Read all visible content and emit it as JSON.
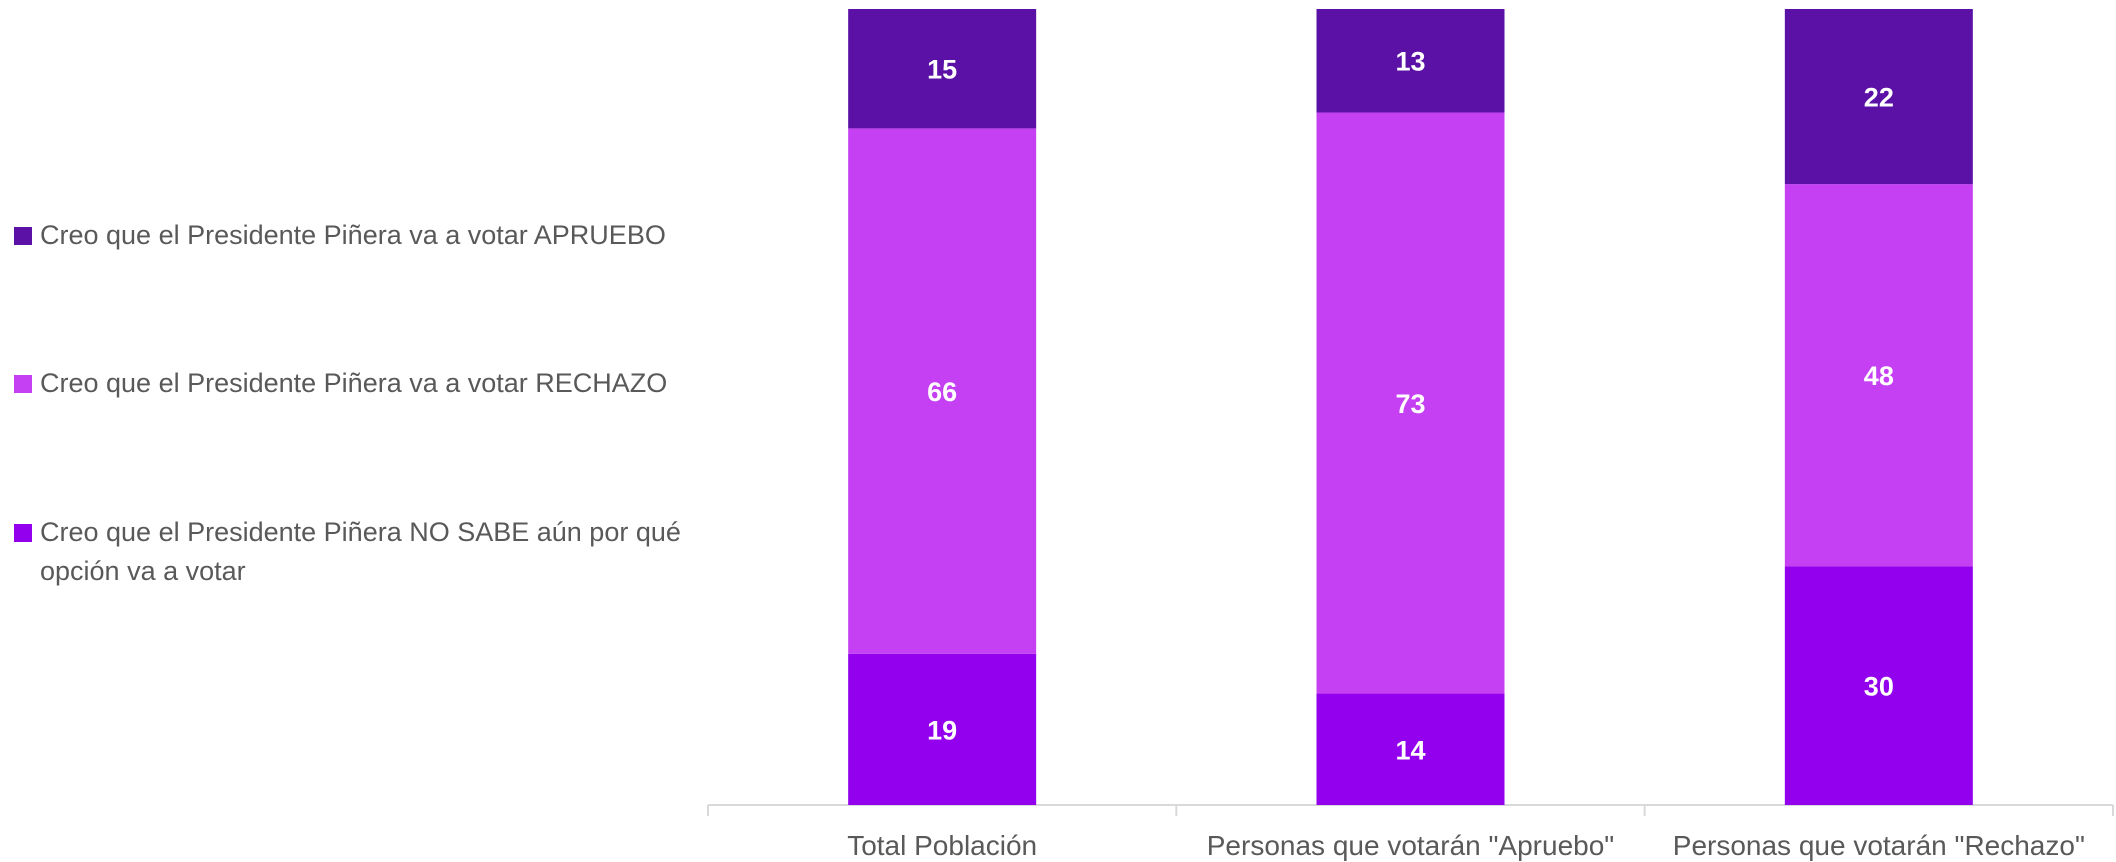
{
  "chart_data": {
    "type": "bar",
    "stacked": true,
    "categories": [
      "Total Población",
      "Personas que votarán \"Apruebo\"",
      "Personas que votarán \"Rechazo\""
    ],
    "series": [
      {
        "name": "Creo que el Presidente Piñera NO SABE aún por qué opción va a votar",
        "color": "#9300EE",
        "values": [
          19,
          14,
          30
        ]
      },
      {
        "name": "Creo que el Presidente Piñera va a votar RECHAZO",
        "color": "#C440F2",
        "values": [
          66,
          73,
          48
        ]
      },
      {
        "name": "Creo que el Presidente Piñera va a votar APRUEBO",
        "color": "#5B11A6",
        "values": [
          15,
          13,
          22
        ]
      }
    ],
    "ylim": [
      0,
      100
    ],
    "grid": false,
    "legend_position": "left",
    "label_color": "#ffffff",
    "tick_label_color": "#595959",
    "axis_color": "#d9d9d9"
  },
  "legend": {
    "items": [
      {
        "label": "Creo que el Presidente Piñera va a votar APRUEBO",
        "color": "#5B11A6"
      },
      {
        "label": "Creo que el Presidente Piñera va a votar RECHAZO",
        "color": "#C440F2"
      },
      {
        "label": "Creo que el Presidente Piñera NO SABE aún por qué opción va a votar",
        "color": "#9300EE"
      }
    ]
  }
}
